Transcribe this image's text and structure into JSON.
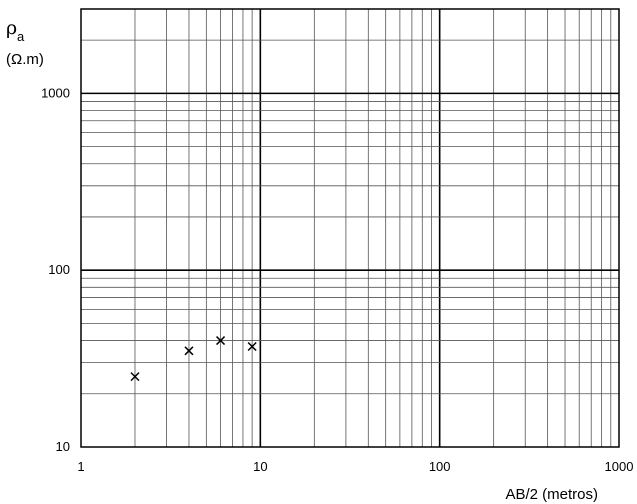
{
  "chart_data": {
    "type": "scatter",
    "title": "",
    "xlabel": "AB/2 (metros)",
    "ylabel_symbol": "ρ",
    "ylabel_subscript": "a",
    "ylabel_unit": "(Ω.m)",
    "xscale": "log",
    "yscale": "log",
    "xlim": [
      1,
      1000
    ],
    "ylim": [
      10,
      3000
    ],
    "x_tick_labels": [
      "1",
      "10",
      "100",
      "1000"
    ],
    "y_tick_labels": [
      "10",
      "100",
      "1000"
    ],
    "grid": true,
    "series": [
      {
        "marker": "x",
        "x": [
          2,
          4,
          6,
          9
        ],
        "y": [
          25,
          35,
          40,
          37
        ]
      }
    ]
  }
}
